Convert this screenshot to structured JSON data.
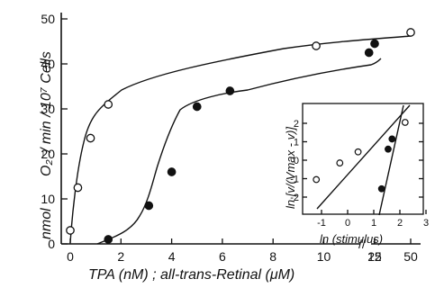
{
  "chart_data": [
    {
      "type": "line",
      "title": "",
      "xlabel": "TPA (nM) ; all-trans-Retinal (μM)",
      "ylabel_main": "O₂⁻/ min / 10⁷ Cells",
      "ylabel_unit": "nmol",
      "x_ticks": [
        "0",
        "2",
        "4",
        "6",
        "8",
        "10",
        "12",
        "25",
        "50"
      ],
      "x_tick_values": [
        0,
        2,
        4,
        6,
        8,
        10,
        12,
        25,
        50
      ],
      "x_break": "//",
      "y_ticks": [
        "0",
        "10",
        "20",
        "30",
        "40",
        "50"
      ],
      "ylim": [
        0,
        50
      ],
      "grid": false,
      "series": [
        {
          "marker": "open-circle",
          "x": [
            0,
            0.3,
            0.8,
            1.5,
            9.7,
            50
          ],
          "y": [
            3,
            12.5,
            23.5,
            31,
            44,
            47
          ]
        },
        {
          "marker": "filled-circle",
          "x": [
            1.5,
            3.1,
            4.0,
            5.0,
            6.3,
            12.4,
            25
          ],
          "y": [
            1,
            8.5,
            16,
            30.5,
            34,
            42.5,
            44.5
          ]
        }
      ]
    },
    {
      "type": "scatter",
      "title": "",
      "xlabel": "ln (stimulus)",
      "ylabel": "ln [v/(Vmax - v)]",
      "x_ticks": [
        "-1",
        "0",
        "1",
        "2",
        "3"
      ],
      "y_ticks": [
        "-2",
        "-1",
        "0",
        "1",
        "2"
      ],
      "xlim": [
        -2,
        3.5
      ],
      "ylim": [
        -2,
        2.2
      ],
      "grid": false,
      "series": [
        {
          "marker": "open-circle",
          "x": [
            -1.2,
            -0.3,
            0.4,
            2.2
          ],
          "y": [
            -1.05,
            -0.15,
            0.45,
            2.05
          ]
        },
        {
          "marker": "filled-circle",
          "x": [
            1.3,
            1.55,
            1.7
          ],
          "y": [
            -1.55,
            0.6,
            1.15
          ]
        }
      ]
    }
  ]
}
